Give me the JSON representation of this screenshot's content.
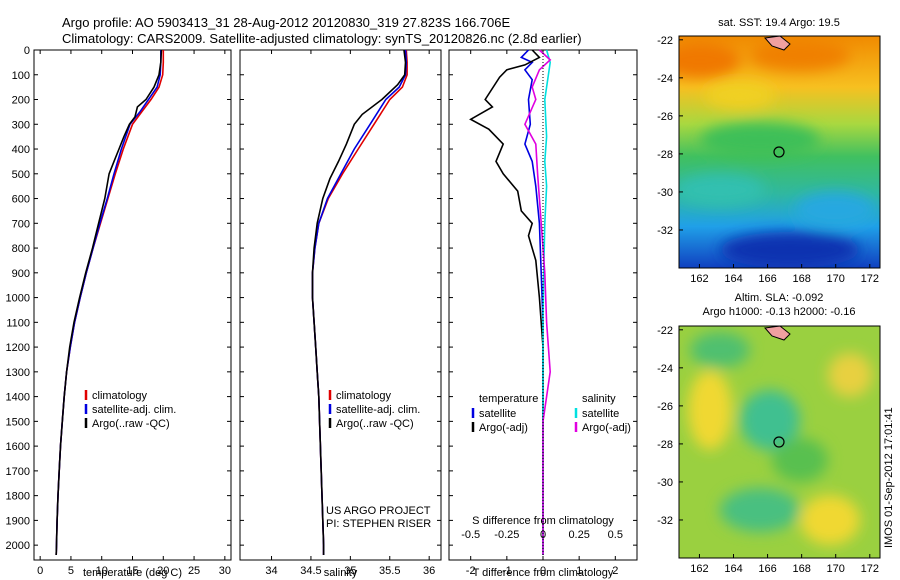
{
  "header": {
    "line1": "Argo profile: AO 5903413_31 28-Aug-2012 20120830_319 27.823S 166.706E",
    "line2": "Climatology: CARS2009. Satellite-adjusted climatology: synTS_20120826.nc (2.8d earlier)"
  },
  "colors": {
    "climatology": "#e00000",
    "satellite": "#0000e0",
    "argo": "#000000",
    "sal_satellite": "#00e0e0",
    "sal_argo": "#e000e0",
    "coast": "#f0a0a0"
  },
  "chart_data": [
    {
      "type": "line",
      "id": "temperature",
      "xlabel": "temperature (deg C)",
      "ylabel": "",
      "xlim": [
        -1,
        31
      ],
      "ylim": [
        2060,
        0
      ],
      "xticks": [
        "0",
        "5",
        "10",
        "15",
        "20",
        "25",
        "30"
      ],
      "xtick_values": [
        0,
        5,
        10,
        15,
        20,
        25,
        30
      ],
      "yticks": [
        "0",
        "100",
        "200",
        "300",
        "400",
        "500",
        "600",
        "700",
        "800",
        "900",
        "1000",
        "1100",
        "1200",
        "1300",
        "1400",
        "1500",
        "1600",
        "1700",
        "1800",
        "1900",
        "2000"
      ],
      "legend": [
        "climatology",
        "satellite-adj. clim.",
        "Argo(..raw -QC)"
      ],
      "series": [
        {
          "name": "climatology",
          "color": "#e00000",
          "points": [
            [
              20,
              0
            ],
            [
              20,
              50
            ],
            [
              19.9,
              100
            ],
            [
              19.3,
              150
            ],
            [
              18,
              200
            ],
            [
              16.5,
              250
            ],
            [
              15,
              300
            ],
            [
              13.5,
              400
            ],
            [
              12.2,
              500
            ],
            [
              11,
              600
            ],
            [
              9.8,
              700
            ],
            [
              8.6,
              800
            ],
            [
              7.5,
              900
            ],
            [
              6.5,
              1000
            ],
            [
              5.6,
              1100
            ],
            [
              4.9,
              1200
            ],
            [
              4.3,
              1300
            ],
            [
              3.9,
              1400
            ],
            [
              3.6,
              1500
            ],
            [
              3.3,
              1600
            ],
            [
              3.1,
              1700
            ],
            [
              2.9,
              1800
            ],
            [
              2.75,
              1900
            ],
            [
              2.65,
              2000
            ],
            [
              2.6,
              2040
            ]
          ]
        },
        {
          "name": "satellite-adj. clim.",
          "color": "#0000e0",
          "points": [
            [
              19.6,
              0
            ],
            [
              19.6,
              50
            ],
            [
              19.5,
              100
            ],
            [
              19,
              150
            ],
            [
              17.6,
              200
            ],
            [
              16.2,
              250
            ],
            [
              14.6,
              300
            ],
            [
              13.2,
              400
            ],
            [
              12,
              500
            ],
            [
              10.9,
              600
            ],
            [
              9.7,
              700
            ],
            [
              8.6,
              800
            ],
            [
              7.5,
              900
            ],
            [
              6.5,
              1000
            ],
            [
              5.6,
              1100
            ],
            [
              4.9,
              1200
            ],
            [
              4.3,
              1300
            ],
            [
              3.9,
              1400
            ],
            [
              3.6,
              1500
            ],
            [
              3.3,
              1600
            ],
            [
              3.1,
              1700
            ],
            [
              2.9,
              1800
            ],
            [
              2.75,
              1900
            ],
            [
              2.65,
              2000
            ],
            [
              2.6,
              2040
            ]
          ]
        },
        {
          "name": "Argo(..raw -QC)",
          "color": "#000000",
          "points": [
            [
              19.7,
              0
            ],
            [
              19.6,
              50
            ],
            [
              19.3,
              100
            ],
            [
              18.5,
              150
            ],
            [
              17.2,
              200
            ],
            [
              15.8,
              230
            ],
            [
              15.4,
              270
            ],
            [
              14.5,
              300
            ],
            [
              13.6,
              350
            ],
            [
              12.8,
              400
            ],
            [
              12,
              450
            ],
            [
              11.2,
              500
            ],
            [
              10.5,
              600
            ],
            [
              9.5,
              700
            ],
            [
              8.5,
              800
            ],
            [
              7.4,
              900
            ],
            [
              6.4,
              1000
            ],
            [
              5.5,
              1100
            ],
            [
              4.8,
              1200
            ],
            [
              4.3,
              1300
            ],
            [
              3.9,
              1400
            ],
            [
              3.6,
              1500
            ],
            [
              3.3,
              1600
            ],
            [
              3.1,
              1700
            ],
            [
              2.9,
              1800
            ],
            [
              2.75,
              1900
            ],
            [
              2.65,
              2000
            ],
            [
              2.6,
              2040
            ]
          ]
        }
      ]
    },
    {
      "type": "line",
      "id": "salinity",
      "xlabel": "salinity",
      "xlim": [
        33.6,
        36.15
      ],
      "ylim": [
        2060,
        0
      ],
      "xticks": [
        "34",
        "34.5",
        "35",
        "35.5",
        "36"
      ],
      "xtick_values": [
        34,
        34.5,
        35,
        35.5,
        36
      ],
      "legend": [
        "climatology",
        "satellite-adj. clim.",
        "Argo(..raw -QC)"
      ],
      "annotations": [
        "US ARGO PROJECT",
        "PI: STEPHEN RISER"
      ],
      "series": [
        {
          "name": "climatology",
          "color": "#e00000",
          "points": [
            [
              35.71,
              0
            ],
            [
              35.72,
              50
            ],
            [
              35.72,
              100
            ],
            [
              35.66,
              150
            ],
            [
              35.5,
              200
            ],
            [
              35.3,
              300
            ],
            [
              35.1,
              400
            ],
            [
              34.9,
              500
            ],
            [
              34.72,
              600
            ],
            [
              34.6,
              700
            ],
            [
              34.55,
              800
            ],
            [
              34.52,
              900
            ],
            [
              34.52,
              1000
            ],
            [
              34.54,
              1100
            ],
            [
              34.56,
              1200
            ],
            [
              34.58,
              1300
            ],
            [
              34.6,
              1400
            ],
            [
              34.61,
              1500
            ],
            [
              34.62,
              1600
            ],
            [
              34.63,
              1700
            ],
            [
              34.64,
              1800
            ],
            [
              34.65,
              1900
            ],
            [
              34.66,
              2000
            ],
            [
              34.66,
              2040
            ]
          ]
        },
        {
          "name": "satellite-adj. clim.",
          "color": "#0000e0",
          "points": [
            [
              35.7,
              0
            ],
            [
              35.71,
              50
            ],
            [
              35.7,
              100
            ],
            [
              35.62,
              150
            ],
            [
              35.45,
              200
            ],
            [
              35.25,
              300
            ],
            [
              35.05,
              400
            ],
            [
              34.88,
              500
            ],
            [
              34.71,
              600
            ],
            [
              34.6,
              700
            ],
            [
              34.55,
              800
            ],
            [
              34.52,
              900
            ],
            [
              34.52,
              1000
            ],
            [
              34.54,
              1100
            ],
            [
              34.56,
              1200
            ],
            [
              34.58,
              1300
            ],
            [
              34.6,
              1400
            ],
            [
              34.61,
              1500
            ],
            [
              34.62,
              1600
            ],
            [
              34.63,
              1700
            ],
            [
              34.64,
              1800
            ],
            [
              34.65,
              1900
            ],
            [
              34.66,
              2000
            ],
            [
              34.66,
              2040
            ]
          ]
        },
        {
          "name": "Argo(..raw -QC)",
          "color": "#000000",
          "points": [
            [
              35.68,
              0
            ],
            [
              35.7,
              50
            ],
            [
              35.69,
              100
            ],
            [
              35.6,
              140
            ],
            [
              35.4,
              200
            ],
            [
              35.15,
              260
            ],
            [
              35.05,
              300
            ],
            [
              34.95,
              380
            ],
            [
              34.85,
              450
            ],
            [
              34.74,
              520
            ],
            [
              34.65,
              600
            ],
            [
              34.58,
              700
            ],
            [
              34.54,
              800
            ],
            [
              34.52,
              900
            ],
            [
              34.52,
              1000
            ],
            [
              34.54,
              1100
            ],
            [
              34.56,
              1200
            ],
            [
              34.58,
              1300
            ],
            [
              34.6,
              1400
            ],
            [
              34.61,
              1500
            ],
            [
              34.62,
              1600
            ],
            [
              34.63,
              1700
            ],
            [
              34.64,
              1800
            ],
            [
              34.65,
              1900
            ],
            [
              34.66,
              2000
            ],
            [
              34.66,
              2040
            ]
          ]
        }
      ]
    },
    {
      "type": "line",
      "id": "differences",
      "xlabel": "T difference from climatology",
      "xlabel_top": "S difference from climatology",
      "xlim": [
        -2.6,
        2.6
      ],
      "ylim": [
        2060,
        0
      ],
      "xticks": [
        "-2",
        "-1",
        "0",
        "1",
        "2"
      ],
      "xtick_values": [
        -2,
        -1,
        0,
        1,
        2
      ],
      "xticks_top": [
        "-0.5",
        "-0.25",
        "0",
        "0.25",
        "0.5"
      ],
      "legend_left_title": "temperature",
      "legend_right_title": "salinity",
      "legend": [
        "satellite",
        "Argo(-adj)",
        "satellite",
        "Argo(-adj)"
      ],
      "series": [
        {
          "name": "satellite",
          "group": "temperature",
          "color": "#0000e0",
          "points": [
            [
              -0.4,
              0
            ],
            [
              -0.6,
              30
            ],
            [
              -0.3,
              50
            ],
            [
              -0.5,
              80
            ],
            [
              -0.3,
              120
            ],
            [
              -0.4,
              200
            ],
            [
              -0.35,
              300
            ],
            [
              -0.5,
              380
            ],
            [
              -0.3,
              450
            ],
            [
              -0.2,
              550
            ],
            [
              -0.1,
              700
            ],
            [
              -0.05,
              900
            ],
            [
              0,
              1100
            ],
            [
              0,
              2040
            ]
          ]
        },
        {
          "name": "Argo(-adj)",
          "group": "temperature",
          "color": "#000000",
          "points": [
            [
              -0.3,
              0
            ],
            [
              -0.1,
              30
            ],
            [
              -0.5,
              60
            ],
            [
              -1,
              80
            ],
            [
              -1.2,
              110
            ],
            [
              -1.6,
              200
            ],
            [
              -1.4,
              230
            ],
            [
              -2,
              280
            ],
            [
              -1.5,
              320
            ],
            [
              -1.1,
              380
            ],
            [
              -1.3,
              450
            ],
            [
              -1.1,
              500
            ],
            [
              -0.7,
              570
            ],
            [
              -0.6,
              650
            ],
            [
              -0.3,
              700
            ],
            [
              -0.4,
              750
            ],
            [
              -0.2,
              850
            ],
            [
              -0.1,
              1000
            ],
            [
              0,
              1200
            ],
            [
              0,
              2040
            ]
          ]
        },
        {
          "name": "satellite",
          "group": "salinity",
          "color": "#00e0e0",
          "points": [
            [
              0.1,
              0
            ],
            [
              0.2,
              50
            ],
            [
              0.15,
              100
            ],
            [
              0.05,
              200
            ],
            [
              0.1,
              350
            ],
            [
              0.05,
              450
            ],
            [
              0.1,
              550
            ],
            [
              0.05,
              700
            ],
            [
              0.02,
              900
            ],
            [
              0,
              1100
            ],
            [
              0,
              2040
            ]
          ]
        },
        {
          "name": "Argo(-adj)",
          "group": "salinity",
          "color": "#e000e0",
          "points": [
            [
              -0.1,
              0
            ],
            [
              0.2,
              40
            ],
            [
              -0.1,
              80
            ],
            [
              -0.3,
              150
            ],
            [
              -0.2,
              200
            ],
            [
              -0.5,
              300
            ],
            [
              -0.2,
              380
            ],
            [
              -0.15,
              500
            ],
            [
              -0.1,
              600
            ],
            [
              -0.05,
              700
            ],
            [
              0.05,
              900
            ],
            [
              0.1,
              1100
            ],
            [
              0.2,
              1300
            ],
            [
              0.1,
              1400
            ],
            [
              0,
              1500
            ],
            [
              0,
              2040
            ]
          ]
        }
      ]
    },
    {
      "type": "heatmap",
      "id": "sst_map",
      "title": "sat. SST: 19.4  Argo: 19.5",
      "xticks": [
        "162",
        "164",
        "166",
        "168",
        "170",
        "172"
      ],
      "xtick_values": [
        162,
        164,
        166,
        168,
        170,
        172
      ],
      "yticks": [
        "-22",
        "-24",
        "-26",
        "-28",
        "-30",
        "-32"
      ],
      "ytick_values": [
        -22,
        -24,
        -26,
        -28,
        -30,
        -32
      ],
      "xlim": [
        160.8,
        172.6
      ],
      "ylim": [
        -34,
        -21.8
      ],
      "marker": {
        "lon": 166.706,
        "lat": -27.823
      }
    },
    {
      "type": "heatmap",
      "id": "sla_map",
      "title_line1": "Altim. SLA: -0.092",
      "title_line2": "Argo h1000: -0.13 h2000: -0.16",
      "xticks": [
        "162",
        "164",
        "166",
        "168",
        "170",
        "172"
      ],
      "xtick_values": [
        162,
        164,
        166,
        168,
        170,
        172
      ],
      "yticks": [
        "-22",
        "-24",
        "-26",
        "-28",
        "-30",
        "-32"
      ],
      "ytick_values": [
        -22,
        -24,
        -26,
        -28,
        -30,
        -32
      ],
      "xlim": [
        160.8,
        172.6
      ],
      "ylim": [
        -34,
        -21.8
      ],
      "marker": {
        "lon": 166.706,
        "lat": -27.823
      }
    }
  ],
  "footer": {
    "stamp": "IMOS 01-Sep-2012 17:01:41"
  }
}
